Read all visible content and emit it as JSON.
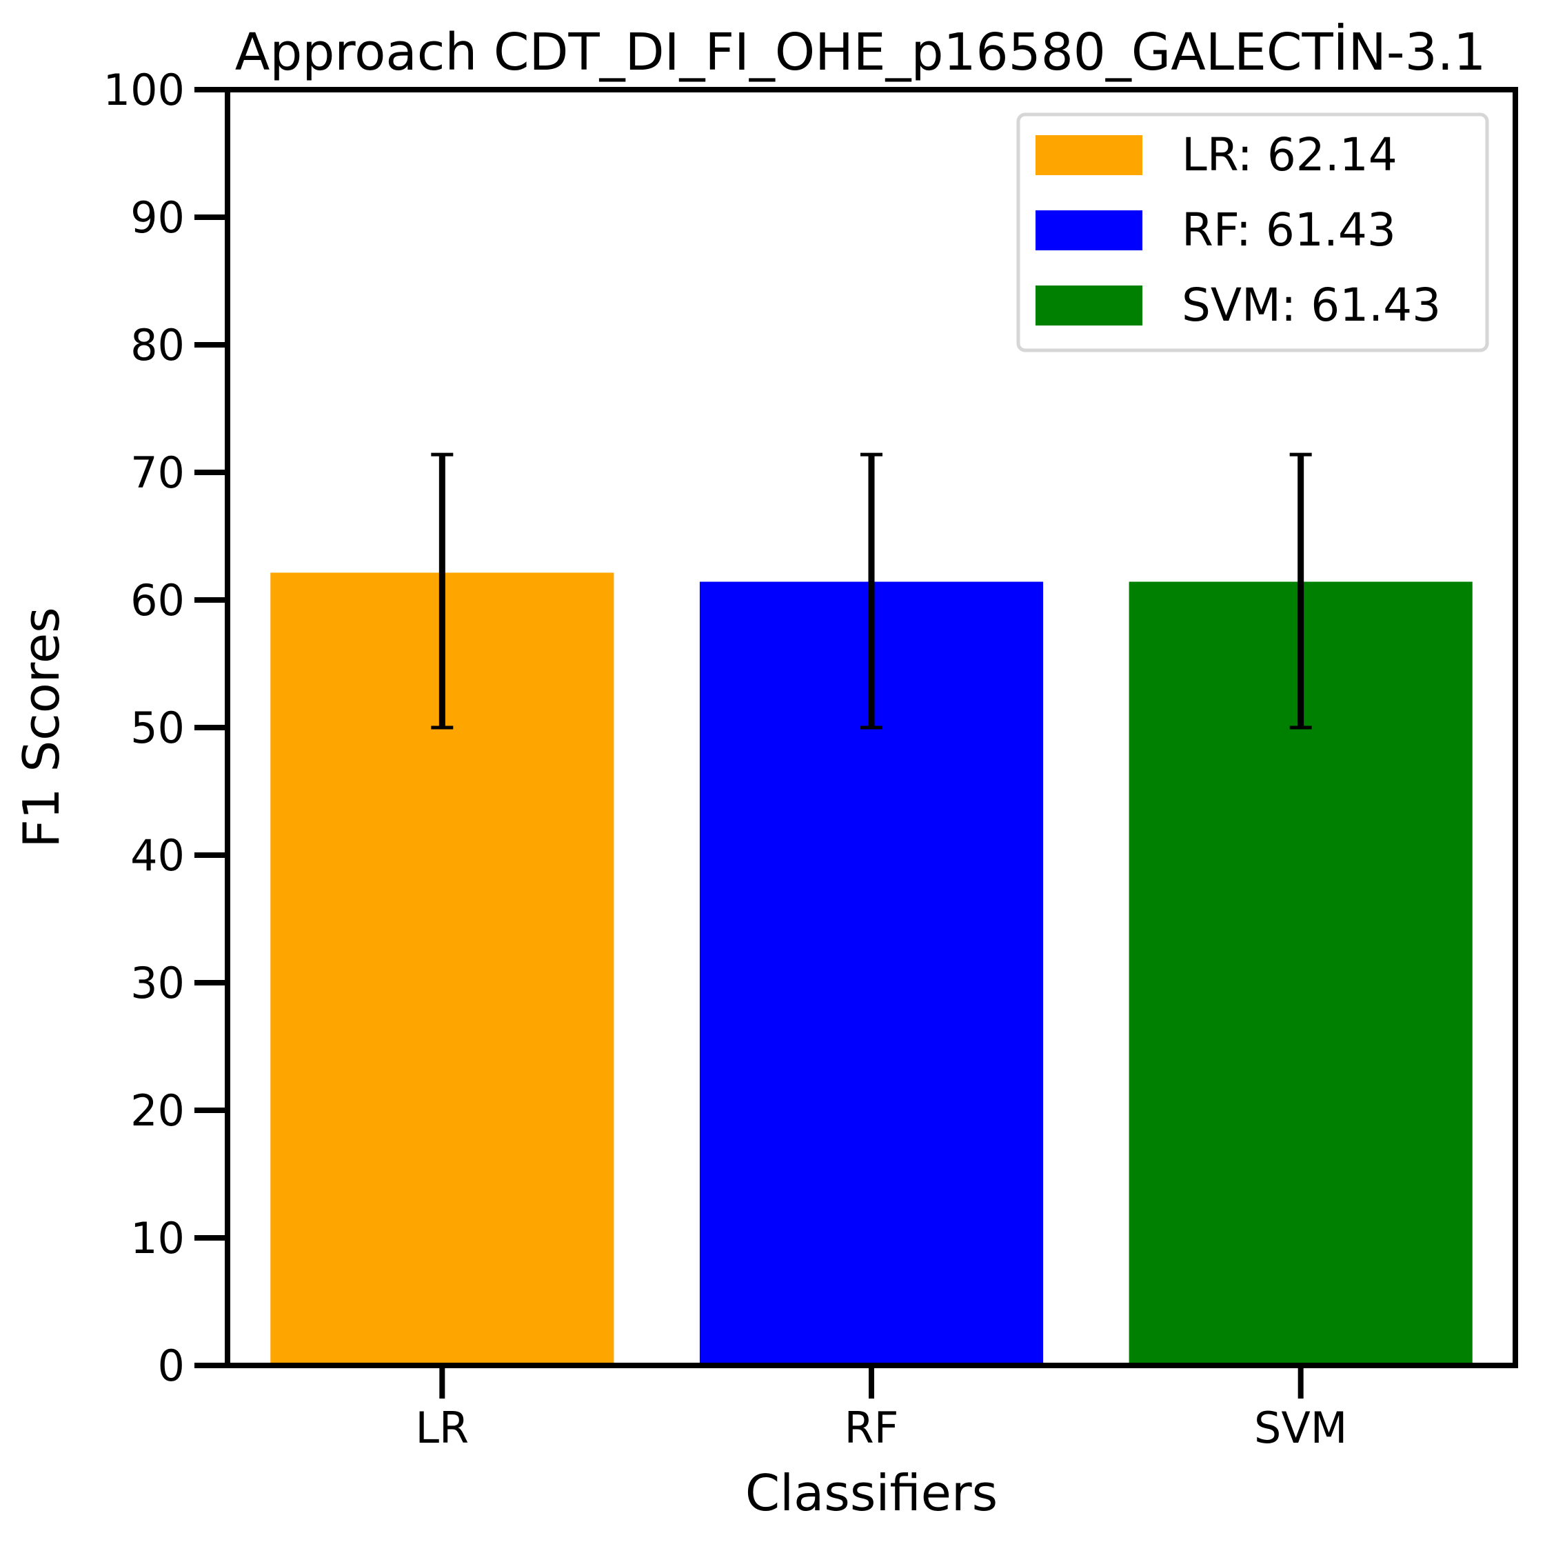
{
  "chart_data": {
    "type": "bar",
    "title": "Approach CDT_DI_FI_OHE_p16580_GALECTİN-3.1",
    "xlabel": "Classifiers",
    "ylabel": "F1 Scores",
    "ylim": [
      0,
      100
    ],
    "yticks": [
      "0",
      "10",
      "20",
      "30",
      "40",
      "50",
      "60",
      "70",
      "80",
      "90",
      "100"
    ],
    "categories": [
      "LR",
      "RF",
      "SVM"
    ],
    "values": [
      62.14,
      61.43,
      61.43
    ],
    "error_low": [
      50.0,
      50.0,
      50.0
    ],
    "error_high": [
      71.4,
      71.4,
      71.4
    ],
    "colors": [
      "#ffa500",
      "#0000ff",
      "#008000"
    ],
    "grid": false,
    "legend": {
      "placement": "top-right",
      "entries": [
        "LR: 62.14",
        "RF: 61.43",
        "SVM: 61.43"
      ]
    }
  }
}
